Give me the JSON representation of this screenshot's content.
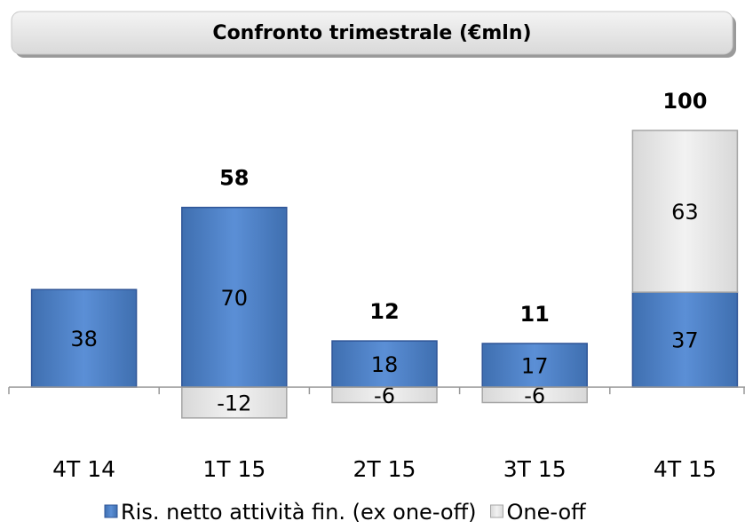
{
  "chart_data": {
    "type": "stacked_bar",
    "title": "Confronto trimestrale (€mln)",
    "categories": [
      "4T 14",
      "1T 15",
      "2T 15",
      "3T 15",
      "4T 15"
    ],
    "series": [
      {
        "name": "Ris. netto attività fin. (ex one-off)",
        "color": "#4f81bd",
        "values": [
          38,
          70,
          18,
          17,
          37
        ]
      },
      {
        "name": "One-off",
        "color": "#e3e3e3",
        "values": [
          null,
          -12,
          -6,
          -6,
          63
        ]
      }
    ],
    "totals": [
      null,
      58,
      12,
      11,
      100
    ],
    "ylim": [
      -20,
      110
    ]
  }
}
